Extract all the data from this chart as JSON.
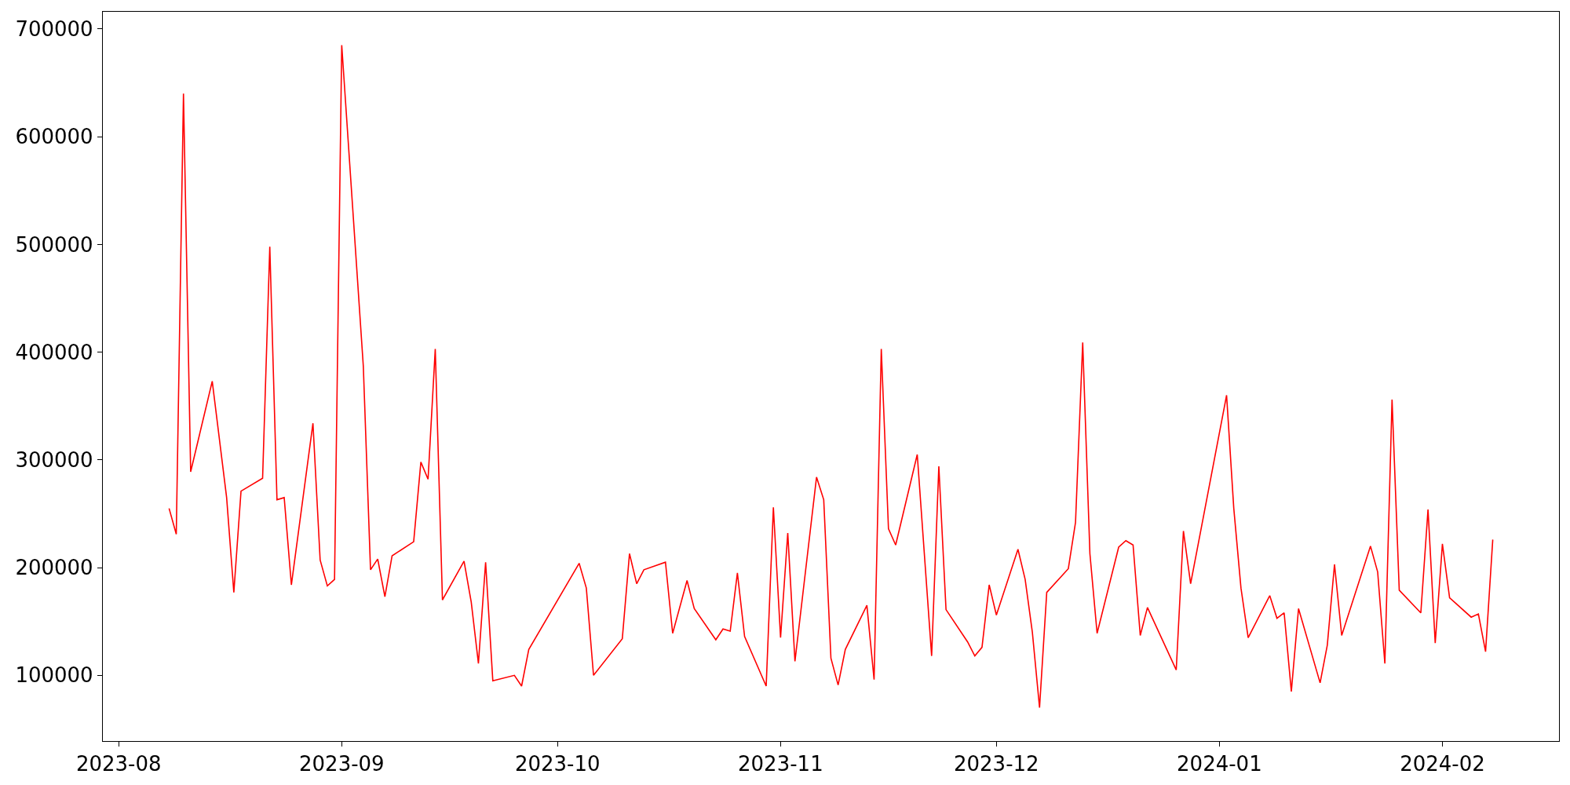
{
  "chart_data": {
    "type": "line",
    "xlim": [
      "2023-07-29T19:00",
      "2024-02-17T05:00"
    ],
    "ylim": [
      39000,
      716000
    ],
    "xticks": [
      {
        "value": "2023-08-01",
        "label": "2023-08"
      },
      {
        "value": "2023-09-01",
        "label": "2023-09"
      },
      {
        "value": "2023-10-01",
        "label": "2023-10"
      },
      {
        "value": "2023-11-01",
        "label": "2023-11"
      },
      {
        "value": "2023-12-01",
        "label": "2023-12"
      },
      {
        "value": "2024-01-01",
        "label": "2024-01"
      },
      {
        "value": "2024-02-01",
        "label": "2024-02"
      }
    ],
    "yticks": [
      100000,
      200000,
      300000,
      400000,
      500000,
      600000,
      700000
    ],
    "marker": "none",
    "line_style": "solid",
    "x": [
      "2023-08-08",
      "2023-08-09",
      "2023-08-10",
      "2023-08-11",
      "2023-08-14",
      "2023-08-16",
      "2023-08-17",
      "2023-08-18",
      "2023-08-21",
      "2023-08-22",
      "2023-08-23",
      "2023-08-24",
      "2023-08-25",
      "2023-08-28",
      "2023-08-29",
      "2023-08-30",
      "2023-08-31",
      "2023-09-01",
      "2023-09-04",
      "2023-09-05",
      "2023-09-06",
      "2023-09-07",
      "2023-09-08",
      "2023-09-11",
      "2023-09-12",
      "2023-09-13",
      "2023-09-14",
      "2023-09-15",
      "2023-09-18",
      "2023-09-19",
      "2023-09-20",
      "2023-09-21",
      "2023-09-22",
      "2023-09-25",
      "2023-09-26",
      "2023-09-27",
      "2023-10-04",
      "2023-10-05",
      "2023-10-06",
      "2023-10-10",
      "2023-10-11",
      "2023-10-12",
      "2023-10-13",
      "2023-10-16",
      "2023-10-17",
      "2023-10-19",
      "2023-10-20",
      "2023-10-23",
      "2023-10-24",
      "2023-10-25",
      "2023-10-26",
      "2023-10-27",
      "2023-10-30",
      "2023-10-31",
      "2023-11-01",
      "2023-11-02",
      "2023-11-03",
      "2023-11-06",
      "2023-11-07",
      "2023-11-08",
      "2023-11-09",
      "2023-11-10",
      "2023-11-13",
      "2023-11-14",
      "2023-11-15",
      "2023-11-16",
      "2023-11-17",
      "2023-11-20",
      "2023-11-22",
      "2023-11-23",
      "2023-11-24",
      "2023-11-27",
      "2023-11-28",
      "2023-11-29",
      "2023-11-30",
      "2023-12-01",
      "2023-12-04",
      "2023-12-05",
      "2023-12-06",
      "2023-12-07",
      "2023-12-08",
      "2023-12-11",
      "2023-12-12",
      "2023-12-13",
      "2023-12-14",
      "2023-12-15",
      "2023-12-18",
      "2023-12-19",
      "2023-12-20",
      "2023-12-21",
      "2023-12-22",
      "2023-12-26",
      "2023-12-27",
      "2023-12-28",
      "2024-01-02",
      "2024-01-03",
      "2024-01-04",
      "2024-01-05",
      "2024-01-08",
      "2024-01-09",
      "2024-01-10",
      "2024-01-11",
      "2024-01-12",
      "2024-01-15",
      "2024-01-16",
      "2024-01-17",
      "2024-01-18",
      "2024-01-22",
      "2024-01-23",
      "2024-01-24",
      "2024-01-25",
      "2024-01-26",
      "2024-01-29",
      "2024-01-30",
      "2024-01-31",
      "2024-02-01",
      "2024-02-02",
      "2024-02-05",
      "2024-02-06",
      "2024-02-07",
      "2024-02-08"
    ],
    "series": [
      {
        "color": "#ff0000",
        "values": [
          255000,
          231000,
          640000,
          289000,
          373000,
          265000,
          177000,
          271000,
          283000,
          498000,
          263000,
          265000,
          184000,
          334000,
          207000,
          183000,
          189000,
          685000,
          387000,
          198000,
          208000,
          173000,
          211000,
          224000,
          298000,
          282000,
          403000,
          170000,
          206000,
          168000,
          111000,
          205000,
          95000,
          100000,
          90000,
          124000,
          204000,
          181000,
          100000,
          134000,
          213000,
          185000,
          198000,
          205000,
          139000,
          188000,
          162000,
          133000,
          143000,
          141000,
          195000,
          136000,
          90000,
          256000,
          135000,
          232000,
          113000,
          284000,
          263000,
          116000,
          91000,
          124000,
          165000,
          96000,
          403000,
          236000,
          221000,
          305000,
          118000,
          294000,
          161000,
          131000,
          118000,
          126000,
          184000,
          156000,
          217000,
          189000,
          140000,
          70000,
          177000,
          199000,
          242000,
          409000,
          213000,
          139000,
          219000,
          225000,
          221000,
          137000,
          163000,
          105000,
          234000,
          185000,
          360000,
          255000,
          181000,
          135000,
          174000,
          153000,
          158000,
          85000,
          162000,
          93000,
          128000,
          203000,
          137000,
          220000,
          196000,
          111000,
          356000,
          179000,
          158000,
          254000,
          130000,
          222000,
          172000,
          154000,
          157000,
          122000,
          226000
        ]
      }
    ]
  }
}
